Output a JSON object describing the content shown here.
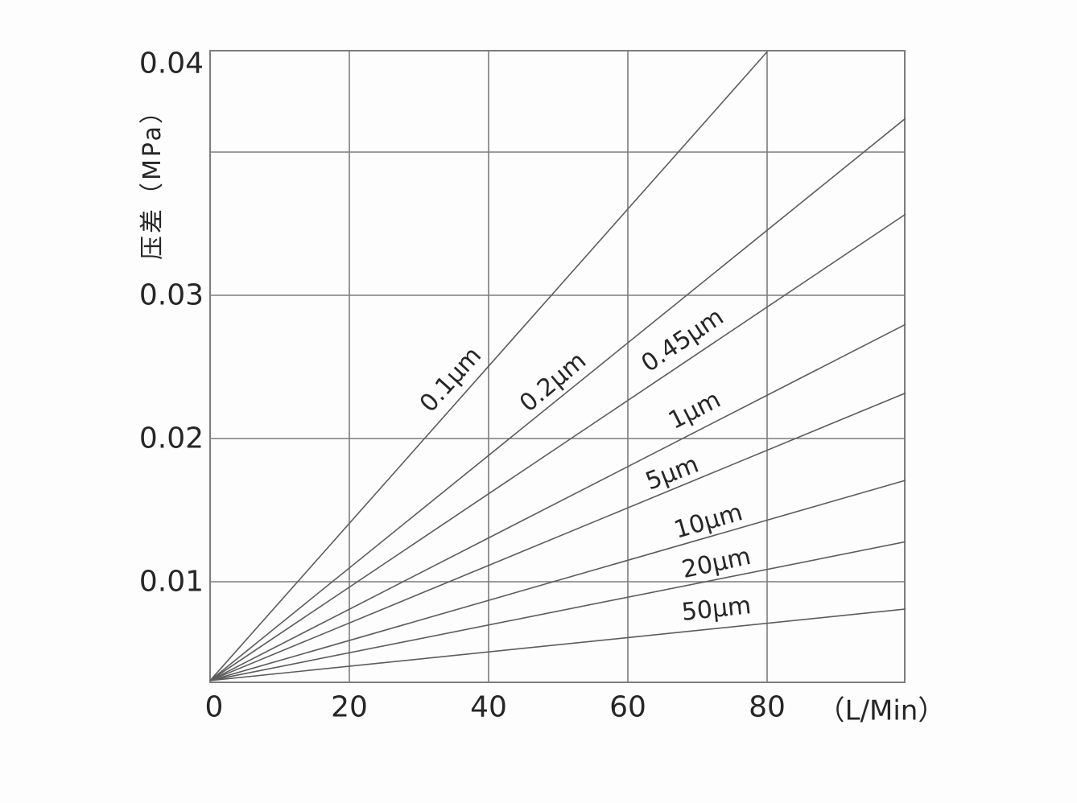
{
  "chart_data": {
    "type": "line",
    "title": "",
    "xlabel": "（L/Min）",
    "ylabel": "压差（MPa）",
    "x_ticks": [
      0,
      20,
      40,
      60,
      80
    ],
    "x_tick_labels": [
      "0",
      "20",
      "40",
      "60",
      "80"
    ],
    "y_ticks": [
      0.01,
      0.02,
      0.03,
      0.04
    ],
    "y_tick_labels": [
      "0.01",
      "0.02",
      "0.03",
      "0.04"
    ],
    "xlim": [
      0,
      100
    ],
    "ylim": [
      0.003,
      0.047
    ],
    "grid": true,
    "legend_position": "inline-on-lines",
    "series": [
      {
        "name": "0.1μm",
        "points": [
          [
            0,
            0.0031
          ],
          [
            80,
            0.047
          ]
        ]
      },
      {
        "name": "0.2μm",
        "points": [
          [
            0,
            0.0031
          ],
          [
            100,
            0.0424
          ]
        ]
      },
      {
        "name": "0.45μm",
        "points": [
          [
            0,
            0.0031
          ],
          [
            100,
            0.0357
          ]
        ]
      },
      {
        "name": "1μm",
        "points": [
          [
            0,
            0.0031
          ],
          [
            100,
            0.028
          ]
        ]
      },
      {
        "name": "5μm",
        "points": [
          [
            0,
            0.0031
          ],
          [
            100,
            0.0232
          ]
        ]
      },
      {
        "name": "10μm",
        "points": [
          [
            0,
            0.0031
          ],
          [
            100,
            0.0171
          ]
        ]
      },
      {
        "name": "20μm",
        "points": [
          [
            0,
            0.0031
          ],
          [
            100,
            0.0128
          ]
        ]
      },
      {
        "name": "50μm",
        "points": [
          [
            0,
            0.0031
          ],
          [
            100,
            0.0081
          ]
        ]
      }
    ],
    "colors": {
      "text": "#262626",
      "grid": "#7d7d7d",
      "curve": "#5c5c5c",
      "background": "#fdfdfd"
    }
  }
}
